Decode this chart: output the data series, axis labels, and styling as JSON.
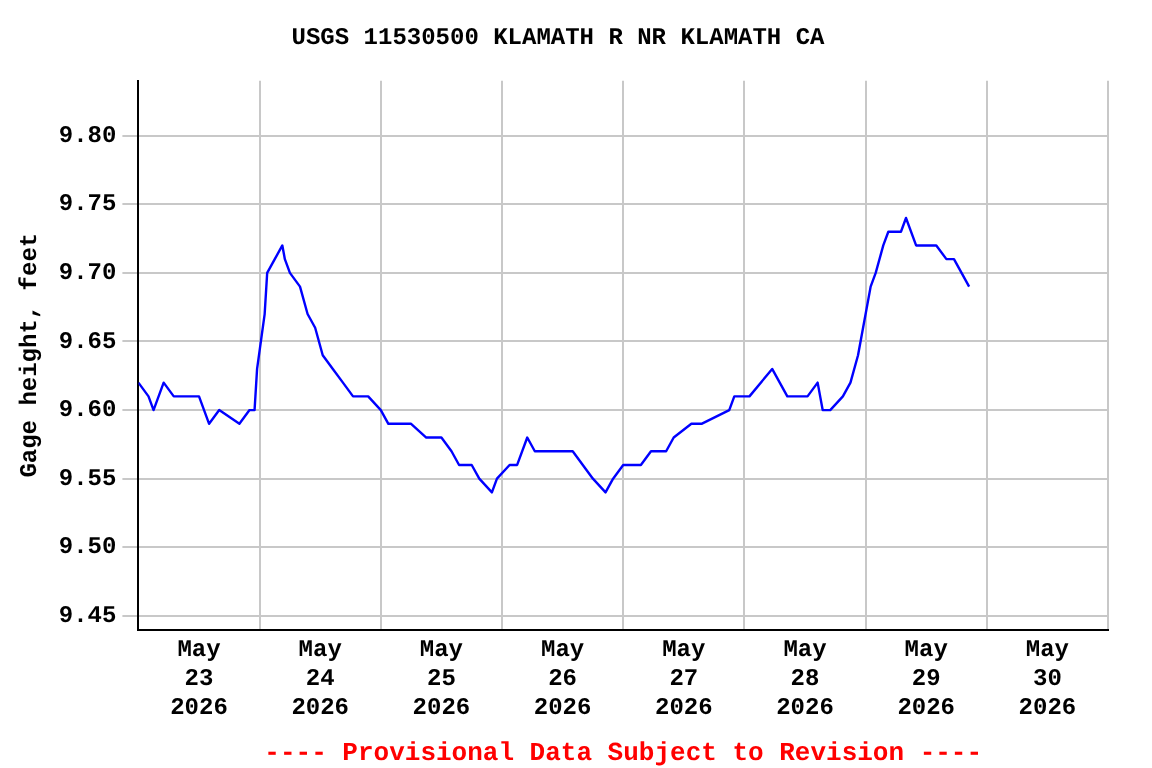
{
  "chart_data": {
    "type": "line",
    "title": "USGS 11530500 KLAMATH R NR KLAMATH CA",
    "ylabel": "Gage height, feet",
    "x": [
      "2026-05-23T00:00",
      "2026-05-23T02:00",
      "2026-05-23T03:00",
      "2026-05-23T05:00",
      "2026-05-23T07:00",
      "2026-05-23T10:00",
      "2026-05-23T12:00",
      "2026-05-23T13:00",
      "2026-05-23T14:00",
      "2026-05-23T16:00",
      "2026-05-23T20:00",
      "2026-05-23T22:00",
      "2026-05-23T23:00",
      "2026-05-23T23:30",
      "2026-05-24T01:00",
      "2026-05-24T01:30",
      "2026-05-24T03:00",
      "2026-05-24T04:30",
      "2026-05-24T05:00",
      "2026-05-24T06:00",
      "2026-05-24T08:00",
      "2026-05-24T09:30",
      "2026-05-24T11:00",
      "2026-05-24T12:30",
      "2026-05-24T14:30",
      "2026-05-24T16:30",
      "2026-05-24T18:30",
      "2026-05-24T21:30",
      "2026-05-25T00:00",
      "2026-05-25T01:30",
      "2026-05-25T06:00",
      "2026-05-25T09:00",
      "2026-05-25T12:00",
      "2026-05-25T14:00",
      "2026-05-25T15:30",
      "2026-05-25T18:00",
      "2026-05-25T19:30",
      "2026-05-25T22:00",
      "2026-05-25T23:00",
      "2026-05-26T01:30",
      "2026-05-26T03:00",
      "2026-05-26T05:00",
      "2026-05-26T06:30",
      "2026-05-26T08:30",
      "2026-05-26T14:00",
      "2026-05-26T16:00",
      "2026-05-26T18:00",
      "2026-05-26T20:30",
      "2026-05-26T22:00",
      "2026-05-27T00:00",
      "2026-05-27T03:30",
      "2026-05-27T05:30",
      "2026-05-27T08:30",
      "2026-05-27T10:00",
      "2026-05-27T13:30",
      "2026-05-27T15:30",
      "2026-05-27T21:00",
      "2026-05-27T22:00",
      "2026-05-28T01:00",
      "2026-05-28T05:30",
      "2026-05-28T07:00",
      "2026-05-28T08:30",
      "2026-05-28T12:30",
      "2026-05-28T14:30",
      "2026-05-28T15:30",
      "2026-05-28T17:00",
      "2026-05-28T19:30",
      "2026-05-28T21:00",
      "2026-05-28T22:30",
      "2026-05-28T23:30",
      "2026-05-29T01:00",
      "2026-05-29T02:00",
      "2026-05-29T03:30",
      "2026-05-29T04:30",
      "2026-05-29T07:00",
      "2026-05-29T08:00",
      "2026-05-29T10:00",
      "2026-05-29T12:00",
      "2026-05-29T14:00",
      "2026-05-29T16:00",
      "2026-05-29T17:30",
      "2026-05-29T19:00",
      "2026-05-29T20:30"
    ],
    "series": [
      {
        "color": "#0000ff",
        "values": [
          9.62,
          9.61,
          9.6,
          9.62,
          9.61,
          9.61,
          9.61,
          9.6,
          9.59,
          9.6,
          9.59,
          9.6,
          9.6,
          9.63,
          9.67,
          9.7,
          9.71,
          9.72,
          9.71,
          9.7,
          9.69,
          9.67,
          9.66,
          9.64,
          9.63,
          9.62,
          9.61,
          9.61,
          9.6,
          9.59,
          9.59,
          9.58,
          9.58,
          9.57,
          9.56,
          9.56,
          9.55,
          9.54,
          9.55,
          9.56,
          9.56,
          9.58,
          9.57,
          9.57,
          9.57,
          9.56,
          9.55,
          9.54,
          9.55,
          9.56,
          9.56,
          9.57,
          9.57,
          9.58,
          9.59,
          9.59,
          9.6,
          9.61,
          9.61,
          9.63,
          9.62,
          9.61,
          9.61,
          9.62,
          9.6,
          9.6,
          9.61,
          9.62,
          9.64,
          9.66,
          9.69,
          9.7,
          9.72,
          9.73,
          9.73,
          9.74,
          9.72,
          9.72,
          9.72,
          9.71,
          9.71,
          9.7,
          9.69
        ]
      }
    ],
    "xlim": [
      "2026-05-23",
      "2026-05-31"
    ],
    "xticks": [
      {
        "value": "2026-05-23",
        "label": null
      },
      {
        "value": "2026-05-23T12:00",
        "label": "May\n23\n2026"
      },
      {
        "value": "2026-05-24",
        "label": null
      },
      {
        "value": "2026-05-24T12:00",
        "label": "May\n24\n2026"
      },
      {
        "value": "2026-05-25",
        "label": null
      },
      {
        "value": "2026-05-25T12:00",
        "label": "May\n25\n2026"
      },
      {
        "value": "2026-05-26",
        "label": null
      },
      {
        "value": "2026-05-26T12:00",
        "label": "May\n26\n2026"
      },
      {
        "value": "2026-05-27",
        "label": null
      },
      {
        "value": "2026-05-27T12:00",
        "label": "May\n27\n2026"
      },
      {
        "value": "2026-05-28",
        "label": null
      },
      {
        "value": "2026-05-28T12:00",
        "label": "May\n28\n2026"
      },
      {
        "value": "2026-05-29",
        "label": null
      },
      {
        "value": "2026-05-29T12:00",
        "label": "May\n29\n2026"
      },
      {
        "value": "2026-05-30",
        "label": null
      },
      {
        "value": "2026-05-30T12:00",
        "label": "May\n30\n2026"
      },
      {
        "value": "2026-05-31",
        "label": null
      }
    ],
    "ylim": [
      9.44,
      9.84
    ],
    "yticks": [
      {
        "value": 9.45,
        "label": "9.45"
      },
      {
        "value": 9.5,
        "label": "9.50"
      },
      {
        "value": 9.55,
        "label": "9.55"
      },
      {
        "value": 9.6,
        "label": "9.60"
      },
      {
        "value": 9.65,
        "label": "9.65"
      },
      {
        "value": 9.7,
        "label": "9.70"
      },
      {
        "value": 9.75,
        "label": "9.75"
      },
      {
        "value": 9.8,
        "label": "9.80"
      }
    ],
    "grid": true,
    "legend": false,
    "marker": "none",
    "line_style": "solid",
    "annotations": [
      "---- Provisional Data Subject to Revision ----"
    ]
  }
}
